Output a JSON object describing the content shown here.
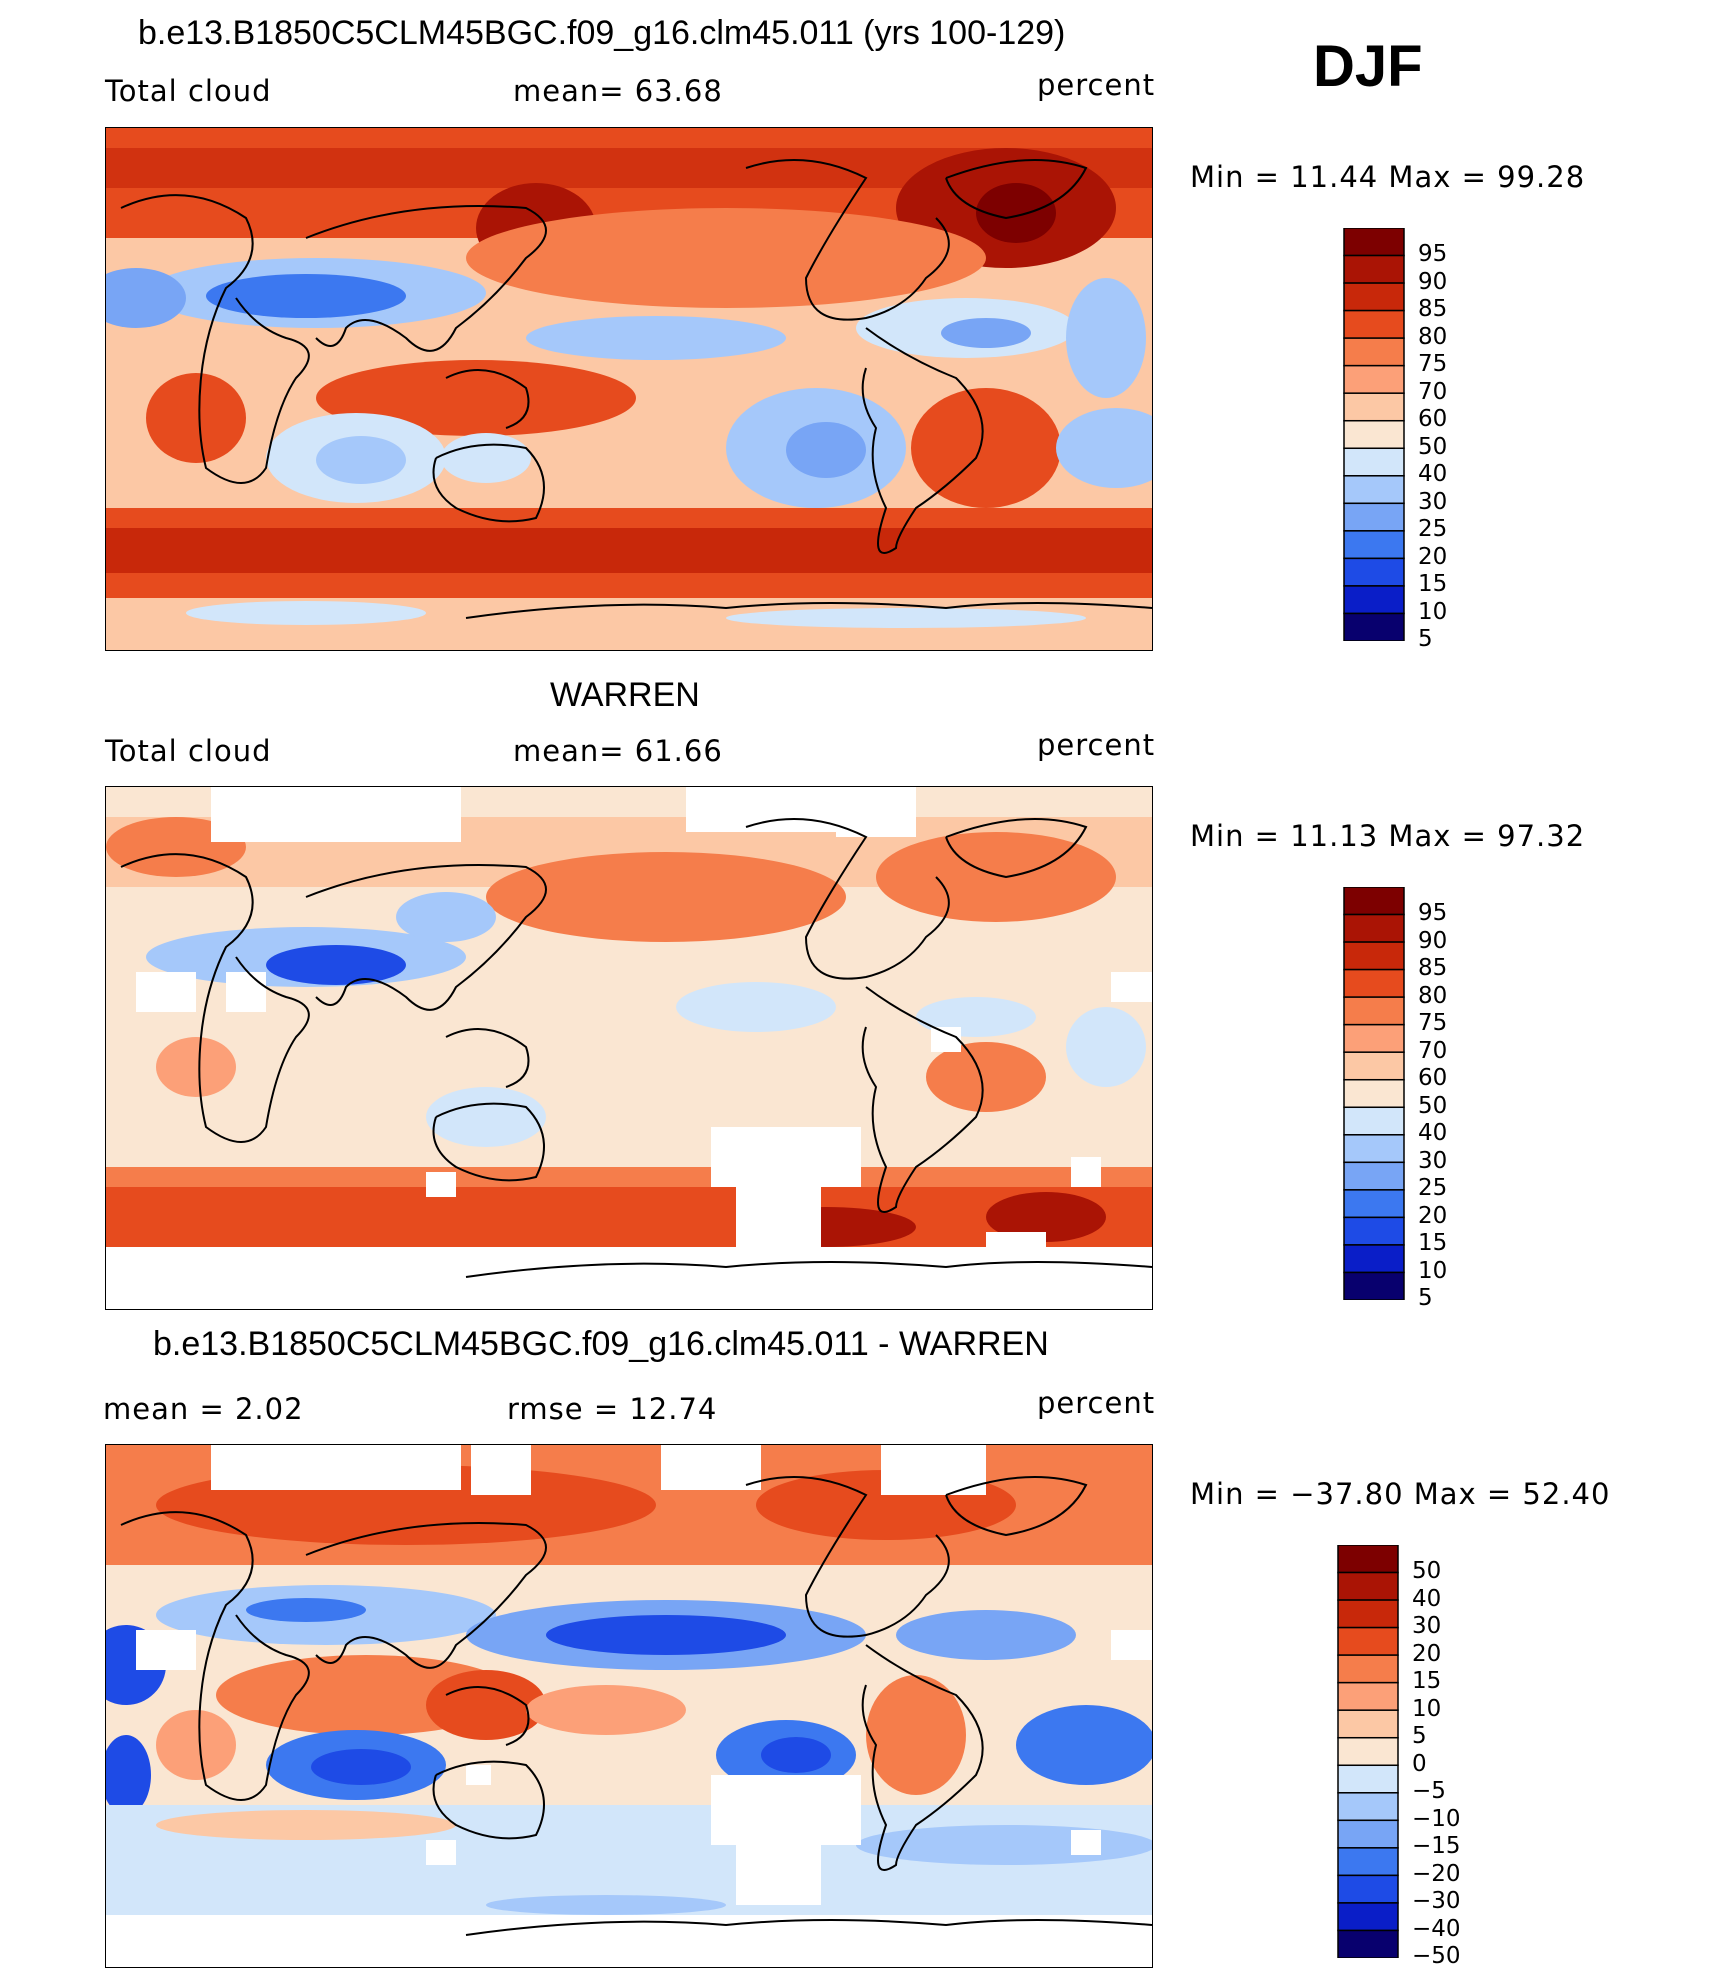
{
  "season": "DJF",
  "colors": {
    "scale_percent": [
      "#08006e",
      "#0a1ec8",
      "#1e4be6",
      "#3c78f0",
      "#78a5f5",
      "#a5c8fa",
      "#d2e6fa",
      "#fae6d2",
      "#fcc8a5",
      "#fca078",
      "#f57d4b",
      "#e64b1e",
      "#c8280a",
      "#aa1405",
      "#7d0000"
    ],
    "scale_diff": [
      "#08006e",
      "#0a1ec8",
      "#1e4be6",
      "#3c78f0",
      "#78a5f5",
      "#a5c8fa",
      "#d2e6fa",
      "#fae6d2",
      "#fcc8a5",
      "#fca078",
      "#f57d4b",
      "#e64b1e",
      "#c8280a",
      "#aa1405",
      "#7d0000"
    ],
    "land_outline": "#000000",
    "missing": "#ffffff"
  },
  "panels": [
    {
      "title": "b.e13.B1850C5CLM45BGC.f09_g16.clm45.011 (yrs 100-129)",
      "left_label": "Total cloud",
      "center_label": "mean=   63.68",
      "right_label": "percent",
      "minmax": "Min =    11.44  Max =    99.28",
      "colorbar_labels": [
        "95",
        "90",
        "85",
        "80",
        "75",
        "70",
        "60",
        "50",
        "40",
        "30",
        "25",
        "20",
        "15",
        "10",
        "5"
      ]
    },
    {
      "title": "WARREN",
      "left_label": "Total cloud",
      "center_label": "mean=   61.66",
      "right_label": "percent",
      "minmax": "Min =    11.13  Max =    97.32",
      "colorbar_labels": [
        "95",
        "90",
        "85",
        "80",
        "75",
        "70",
        "60",
        "50",
        "40",
        "30",
        "25",
        "20",
        "15",
        "10",
        "5"
      ]
    },
    {
      "title": "b.e13.B1850C5CLM45BGC.f09_g16.clm45.011 - WARREN",
      "left_label": "mean =     2.02",
      "center_label": "rmse =    12.74",
      "right_label": "percent",
      "minmax": "Min = −37.80  Max =    52.40",
      "colorbar_labels": [
        "50",
        "40",
        "30",
        "20",
        "15",
        "10",
        "5",
        "0",
        "−5",
        "−10",
        "−15",
        "−20",
        "−30",
        "−40",
        "−50"
      ]
    }
  ]
}
